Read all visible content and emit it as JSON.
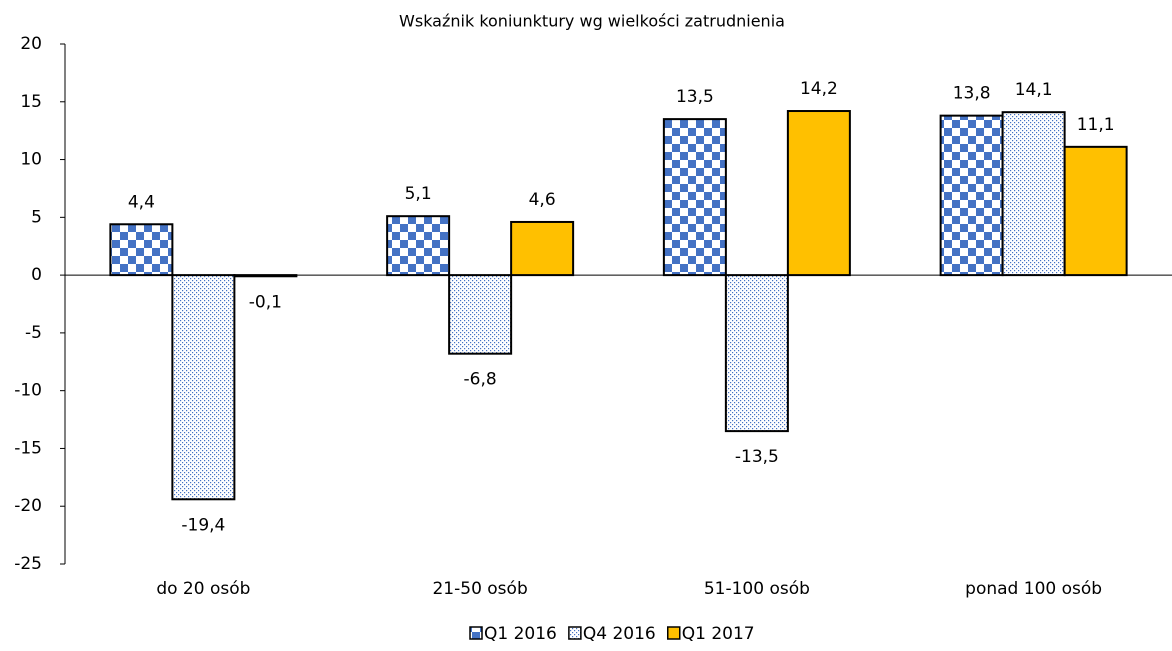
{
  "chart_data": {
    "type": "bar",
    "title": "Wskaźnik koniunktury wg wielkości zatrudnienia",
    "categories": [
      "do 20 osób",
      "21-50 osób",
      "51-100 osób",
      "ponad 100 osób"
    ],
    "series": [
      {
        "name": "Q1 2016",
        "color": "#4472c4",
        "pattern": "checker",
        "values": [
          4.4,
          5.1,
          13.5,
          13.8
        ],
        "value_labels": [
          "4,4",
          "5,1",
          "13,5",
          "13,8"
        ]
      },
      {
        "name": "Q4 2016",
        "color": "#4472c4",
        "pattern": "dots",
        "values": [
          -19.4,
          -6.8,
          -13.5,
          14.1
        ],
        "value_labels": [
          "-19,4",
          "-6,8",
          "-13,5",
          "14,1"
        ]
      },
      {
        "name": "Q1 2017",
        "color": "#ffc000",
        "pattern": "solid",
        "values": [
          -0.1,
          4.6,
          14.2,
          11.1
        ],
        "value_labels": [
          "-0,1",
          "4,6",
          "14,2",
          "11,1"
        ]
      }
    ],
    "ylim": [
      -25,
      20
    ],
    "yticks": [
      -25,
      -20,
      -15,
      -10,
      -5,
      0,
      5,
      10,
      15,
      20
    ],
    "legend": "bottom"
  }
}
